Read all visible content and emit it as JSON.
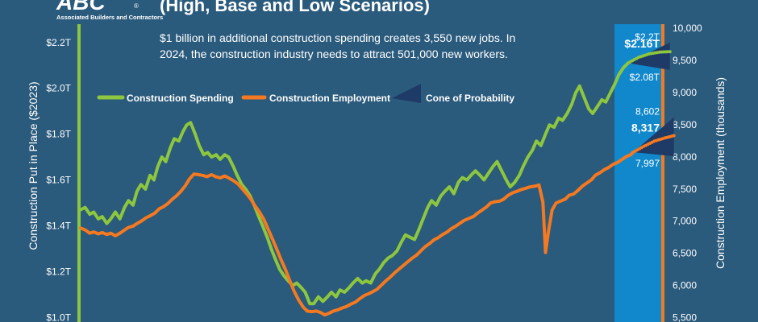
{
  "logo": {
    "letters": "ABC",
    "org_name": "Associated Builders and Contractors",
    "registered_mark": "®"
  },
  "header": {
    "title": "(High, Base and Low Scenarios)",
    "subtitle_line1": "$1 billion in additional construction spending creates 3,550 new jobs. In",
    "subtitle_line2": "2024, the construction industry needs to attract 501,000 new workers."
  },
  "chart_data": {
    "type": "line",
    "ylabel": "Construction Put in Place ($2023)",
    "y2label": "Construction Employment (thousands)",
    "ylim": [
      0.98,
      2.28
    ],
    "y2lim": [
      5420,
      10050
    ],
    "y_ticks": [
      {
        "value": 2.2,
        "label": "$2.2T"
      },
      {
        "value": 2.0,
        "label": "$2.0T"
      },
      {
        "value": 1.8,
        "label": "$1.8T"
      },
      {
        "value": 1.6,
        "label": "$1.6T"
      },
      {
        "value": 1.4,
        "label": "$1.4T"
      },
      {
        "value": 1.2,
        "label": "$1.2T"
      },
      {
        "value": 1.0,
        "label": "$1.0T"
      }
    ],
    "y2_ticks": [
      {
        "value": 10000,
        "label": "10,000"
      },
      {
        "value": 9500,
        "label": "9,500"
      },
      {
        "value": 9000,
        "label": "9,000"
      },
      {
        "value": 8500,
        "label": "8,500"
      },
      {
        "value": 8000,
        "label": "8,000"
      },
      {
        "value": 7500,
        "label": "7,500"
      },
      {
        "value": 7000,
        "label": "7,000"
      },
      {
        "value": 6500,
        "label": "6,500"
      },
      {
        "value": 6000,
        "label": "6,000"
      },
      {
        "value": 5500,
        "label": "5,500"
      }
    ],
    "legend": {
      "placement": "top-left",
      "items": [
        {
          "label": "Construction Spending",
          "color": "#8dc63f"
        },
        {
          "label": "Construction Employment",
          "color": "#f47920"
        },
        {
          "label": "Cone of Probability",
          "color": "#1e3a66"
        }
      ]
    },
    "x_range": [
      0,
      100
    ],
    "forecast_start": 88.0,
    "series": [
      {
        "name": "Construction Spending",
        "axis": "left",
        "color": "#8dc63f",
        "points": [
          [
            0,
            1.47
          ],
          [
            0.7,
            1.48
          ],
          [
            1.4,
            1.45
          ],
          [
            2,
            1.46
          ],
          [
            2.7,
            1.43
          ],
          [
            3.3,
            1.44
          ],
          [
            4,
            1.41
          ],
          [
            4.6,
            1.43
          ],
          [
            5.3,
            1.46
          ],
          [
            6,
            1.43
          ],
          [
            6.7,
            1.48
          ],
          [
            7.3,
            1.51
          ],
          [
            8,
            1.49
          ],
          [
            8.6,
            1.55
          ],
          [
            9.2,
            1.58
          ],
          [
            9.9,
            1.56
          ],
          [
            10.6,
            1.62
          ],
          [
            11.2,
            1.6
          ],
          [
            11.8,
            1.66
          ],
          [
            12.4,
            1.7
          ],
          [
            13,
            1.68
          ],
          [
            13.7,
            1.74
          ],
          [
            14.3,
            1.78
          ],
          [
            15,
            1.77
          ],
          [
            15.6,
            1.81
          ],
          [
            16.2,
            1.84
          ],
          [
            16.8,
            1.85
          ],
          [
            17.5,
            1.8
          ],
          [
            18.1,
            1.75
          ],
          [
            18.8,
            1.71
          ],
          [
            19.4,
            1.72
          ],
          [
            20,
            1.7
          ],
          [
            20.7,
            1.71
          ],
          [
            21.3,
            1.69
          ],
          [
            22,
            1.71
          ],
          [
            22.6,
            1.7
          ],
          [
            23.3,
            1.66
          ],
          [
            23.9,
            1.62
          ],
          [
            24.6,
            1.58
          ],
          [
            25.2,
            1.56
          ],
          [
            25.9,
            1.53
          ],
          [
            26.5,
            1.49
          ],
          [
            27.2,
            1.44
          ],
          [
            27.8,
            1.4
          ],
          [
            28.5,
            1.35
          ],
          [
            29.1,
            1.3
          ],
          [
            29.8,
            1.25
          ],
          [
            30.4,
            1.21
          ],
          [
            31.1,
            1.18
          ],
          [
            31.7,
            1.16
          ],
          [
            32.4,
            1.14
          ],
          [
            33,
            1.15
          ],
          [
            33.7,
            1.13
          ],
          [
            34.3,
            1.11
          ],
          [
            35,
            1.06
          ],
          [
            35.6,
            1.06
          ],
          [
            36.3,
            1.09
          ],
          [
            37,
            1.07
          ],
          [
            37.7,
            1.09
          ],
          [
            38.3,
            1.11
          ],
          [
            39,
            1.09
          ],
          [
            39.6,
            1.12
          ],
          [
            40.3,
            1.11
          ],
          [
            41,
            1.13
          ],
          [
            41.6,
            1.15
          ],
          [
            42.3,
            1.17
          ],
          [
            43,
            1.15
          ],
          [
            43.6,
            1.16
          ],
          [
            44.3,
            1.15
          ],
          [
            45,
            1.19
          ],
          [
            45.6,
            1.21
          ],
          [
            46.3,
            1.24
          ],
          [
            47,
            1.26
          ],
          [
            47.6,
            1.27
          ],
          [
            48.3,
            1.29
          ],
          [
            49,
            1.33
          ],
          [
            49.6,
            1.36
          ],
          [
            50.3,
            1.35
          ],
          [
            51,
            1.34
          ],
          [
            51.6,
            1.38
          ],
          [
            52.3,
            1.43
          ],
          [
            53,
            1.48
          ],
          [
            53.6,
            1.51
          ],
          [
            54.3,
            1.49
          ],
          [
            55,
            1.53
          ],
          [
            55.6,
            1.55
          ],
          [
            56.3,
            1.57
          ],
          [
            57,
            1.54
          ],
          [
            57.7,
            1.59
          ],
          [
            58.3,
            1.61
          ],
          [
            59,
            1.6
          ],
          [
            59.6,
            1.62
          ],
          [
            60.3,
            1.64
          ],
          [
            61,
            1.62
          ],
          [
            61.6,
            1.6
          ],
          [
            62.3,
            1.63
          ],
          [
            63,
            1.66
          ],
          [
            63.6,
            1.68
          ],
          [
            64.3,
            1.64
          ],
          [
            65,
            1.6
          ],
          [
            65.6,
            1.57
          ],
          [
            66.3,
            1.59
          ],
          [
            67,
            1.62
          ],
          [
            67.6,
            1.66
          ],
          [
            68.3,
            1.7
          ],
          [
            69,
            1.73
          ],
          [
            69.6,
            1.77
          ],
          [
            70.3,
            1.75
          ],
          [
            71,
            1.8
          ],
          [
            71.6,
            1.84
          ],
          [
            72.3,
            1.83
          ],
          [
            73,
            1.87
          ],
          [
            73.6,
            1.86
          ],
          [
            74.3,
            1.89
          ],
          [
            75,
            1.93
          ],
          [
            75.6,
            1.98
          ],
          [
            76.2,
            2.01
          ],
          [
            76.9,
            1.96
          ],
          [
            77.6,
            1.91
          ],
          [
            78.2,
            1.89
          ],
          [
            78.9,
            1.92
          ],
          [
            79.6,
            1.95
          ],
          [
            80.2,
            1.94
          ],
          [
            80.9,
            1.98
          ],
          [
            81.6,
            2.02
          ],
          [
            82.2,
            2.06
          ],
          [
            82.9,
            2.09
          ],
          [
            83.6,
            2.11
          ]
        ],
        "forecast": {
          "base": [
            [
              83.6,
              2.11
            ],
            [
              85.2,
              2.135
            ],
            [
              86.8,
              2.15
            ],
            [
              88.4,
              2.158
            ],
            [
              90,
              2.16
            ]
          ],
          "high": [
            [
              83.6,
              2.11
            ],
            [
              90,
              2.2
            ]
          ],
          "low": [
            [
              83.6,
              2.11
            ],
            [
              90,
              2.08
            ]
          ],
          "high_label": "$2.2T",
          "base_label": "$2.16T",
          "low_label": "$2.08T"
        }
      },
      {
        "name": "Construction Employment",
        "axis": "right",
        "color": "#f47920",
        "points": [
          [
            0,
            6880
          ],
          [
            0.7,
            6850
          ],
          [
            1.4,
            6800
          ],
          [
            2,
            6820
          ],
          [
            2.7,
            6790
          ],
          [
            3.3,
            6810
          ],
          [
            4,
            6780
          ],
          [
            4.6,
            6800
          ],
          [
            5.3,
            6760
          ],
          [
            6,
            6800
          ],
          [
            6.7,
            6850
          ],
          [
            7.3,
            6890
          ],
          [
            8,
            6910
          ],
          [
            8.6,
            6950
          ],
          [
            9.3,
            6990
          ],
          [
            10,
            7040
          ],
          [
            10.6,
            7070
          ],
          [
            11.3,
            7110
          ],
          [
            12,
            7180
          ],
          [
            12.6,
            7210
          ],
          [
            13.3,
            7260
          ],
          [
            14,
            7330
          ],
          [
            14.6,
            7380
          ],
          [
            15.3,
            7450
          ],
          [
            16,
            7540
          ],
          [
            16.6,
            7640
          ],
          [
            17.3,
            7720
          ],
          [
            18,
            7710
          ],
          [
            18.6,
            7700
          ],
          [
            19.3,
            7680
          ],
          [
            20,
            7710
          ],
          [
            20.6,
            7680
          ],
          [
            21.3,
            7660
          ],
          [
            22,
            7690
          ],
          [
            22.6,
            7660
          ],
          [
            23.3,
            7620
          ],
          [
            24,
            7570
          ],
          [
            24.6,
            7500
          ],
          [
            25.3,
            7420
          ],
          [
            26,
            7330
          ],
          [
            26.6,
            7230
          ],
          [
            27.3,
            7130
          ],
          [
            28,
            7010
          ],
          [
            28.6,
            6870
          ],
          [
            29.3,
            6710
          ],
          [
            30,
            6540
          ],
          [
            30.6,
            6390
          ],
          [
            31.3,
            6230
          ],
          [
            32,
            6050
          ],
          [
            32.6,
            5900
          ],
          [
            33.3,
            5760
          ],
          [
            34,
            5650
          ],
          [
            34.6,
            5590
          ],
          [
            35.3,
            5580
          ],
          [
            36,
            5590
          ],
          [
            36.6,
            5570
          ],
          [
            37.3,
            5530
          ],
          [
            38,
            5560
          ],
          [
            38.6,
            5590
          ],
          [
            39.3,
            5610
          ],
          [
            40,
            5640
          ],
          [
            40.6,
            5660
          ],
          [
            41.3,
            5700
          ],
          [
            42,
            5730
          ],
          [
            42.6,
            5780
          ],
          [
            43.3,
            5830
          ],
          [
            44,
            5860
          ],
          [
            44.6,
            5890
          ],
          [
            45.3,
            5930
          ],
          [
            46,
            6000
          ],
          [
            46.6,
            6060
          ],
          [
            47.3,
            6120
          ],
          [
            48,
            6190
          ],
          [
            48.6,
            6240
          ],
          [
            49.3,
            6300
          ],
          [
            50,
            6360
          ],
          [
            50.6,
            6410
          ],
          [
            51.3,
            6460
          ],
          [
            52,
            6530
          ],
          [
            52.6,
            6590
          ],
          [
            53.3,
            6640
          ],
          [
            54,
            6700
          ],
          [
            54.6,
            6730
          ],
          [
            55.3,
            6780
          ],
          [
            56,
            6820
          ],
          [
            56.6,
            6870
          ],
          [
            57.3,
            6910
          ],
          [
            58,
            6960
          ],
          [
            58.6,
            7000
          ],
          [
            59.3,
            7030
          ],
          [
            60,
            7060
          ],
          [
            60.6,
            7110
          ],
          [
            61.3,
            7160
          ],
          [
            62,
            7210
          ],
          [
            62.6,
            7270
          ],
          [
            63.3,
            7290
          ],
          [
            64,
            7300
          ],
          [
            64.6,
            7330
          ],
          [
            65.3,
            7390
          ],
          [
            66,
            7430
          ],
          [
            66.6,
            7450
          ],
          [
            67.3,
            7480
          ],
          [
            68,
            7500
          ],
          [
            68.6,
            7520
          ],
          [
            69.3,
            7530
          ],
          [
            70,
            7550
          ],
          [
            70.6,
            7280
          ],
          [
            71,
            6500
          ],
          [
            71.4,
            6800
          ],
          [
            72,
            7160
          ],
          [
            72.6,
            7270
          ],
          [
            73.3,
            7300
          ],
          [
            74,
            7330
          ],
          [
            74.6,
            7390
          ],
          [
            75.3,
            7410
          ],
          [
            76,
            7470
          ],
          [
            76.6,
            7530
          ],
          [
            77.3,
            7580
          ],
          [
            78,
            7630
          ],
          [
            78.6,
            7700
          ],
          [
            79.3,
            7740
          ],
          [
            80,
            7790
          ],
          [
            80.6,
            7820
          ],
          [
            81.3,
            7870
          ],
          [
            82,
            7900
          ],
          [
            82.6,
            7940
          ],
          [
            83.3,
            7990
          ],
          [
            84,
            8020
          ],
          [
            84.4,
            8060
          ]
        ],
        "forecast": {
          "base": [
            [
              84.4,
              8060
            ],
            [
              86,
              8150
            ],
            [
              87.6,
              8230
            ],
            [
              89.2,
              8280
            ],
            [
              90.6,
              8317
            ]
          ],
          "high": [
            [
              84.4,
              8060
            ],
            [
              90.6,
              8602
            ]
          ],
          "low": [
            [
              84.4,
              8060
            ],
            [
              90.6,
              7997
            ]
          ],
          "high_label": "8,602",
          "base_label": "8,317",
          "low_label": "7,997"
        }
      }
    ]
  }
}
